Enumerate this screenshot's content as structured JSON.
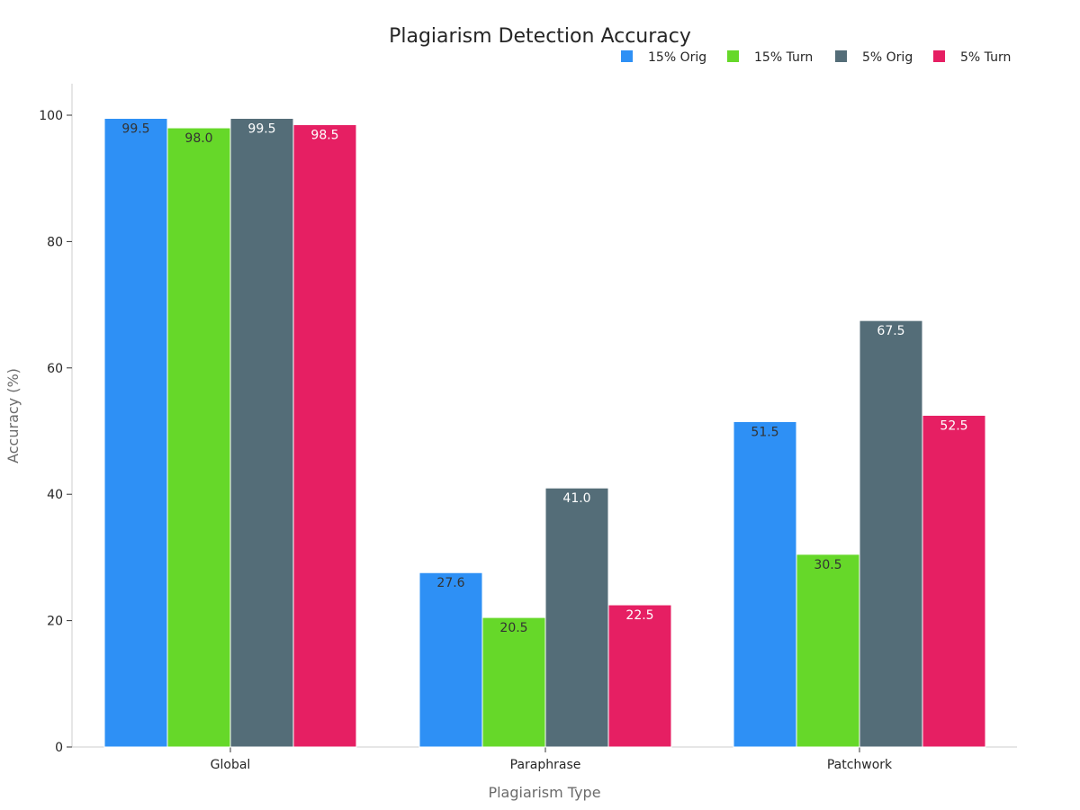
{
  "chart_data": {
    "type": "bar",
    "title": "Plagiarism Detection Accuracy",
    "xlabel": "Plagiarism Type",
    "ylabel": "Accuracy (%)",
    "categories": [
      "Global",
      "Paraphrase",
      "Patchwork"
    ],
    "ylim": [
      0,
      105
    ],
    "yticks": [
      0,
      20,
      40,
      60,
      80,
      100
    ],
    "grid": false,
    "legend_position": "top-right",
    "series": [
      {
        "name": "15% Orig",
        "color": "#2e90f5",
        "label_color": "#333333",
        "values": [
          99.5,
          27.6,
          51.5
        ],
        "labels": [
          "99.5",
          "27.6",
          "51.5"
        ]
      },
      {
        "name": "15% Turn",
        "color": "#66d829",
        "label_color": "#333333",
        "values": [
          98.0,
          20.5,
          30.5
        ],
        "labels": [
          "98.0",
          "20.5",
          "30.5"
        ]
      },
      {
        "name": "5% Orig",
        "color": "#546d78",
        "label_color": "#ffffff",
        "values": [
          99.5,
          41.0,
          67.5
        ],
        "labels": [
          "99.5",
          "41.0",
          "67.5"
        ]
      },
      {
        "name": "5% Turn",
        "color": "#e61f63",
        "label_color": "#ffffff",
        "values": [
          98.5,
          22.5,
          52.5
        ],
        "labels": [
          "98.5",
          "22.5",
          "52.5"
        ]
      }
    ]
  }
}
